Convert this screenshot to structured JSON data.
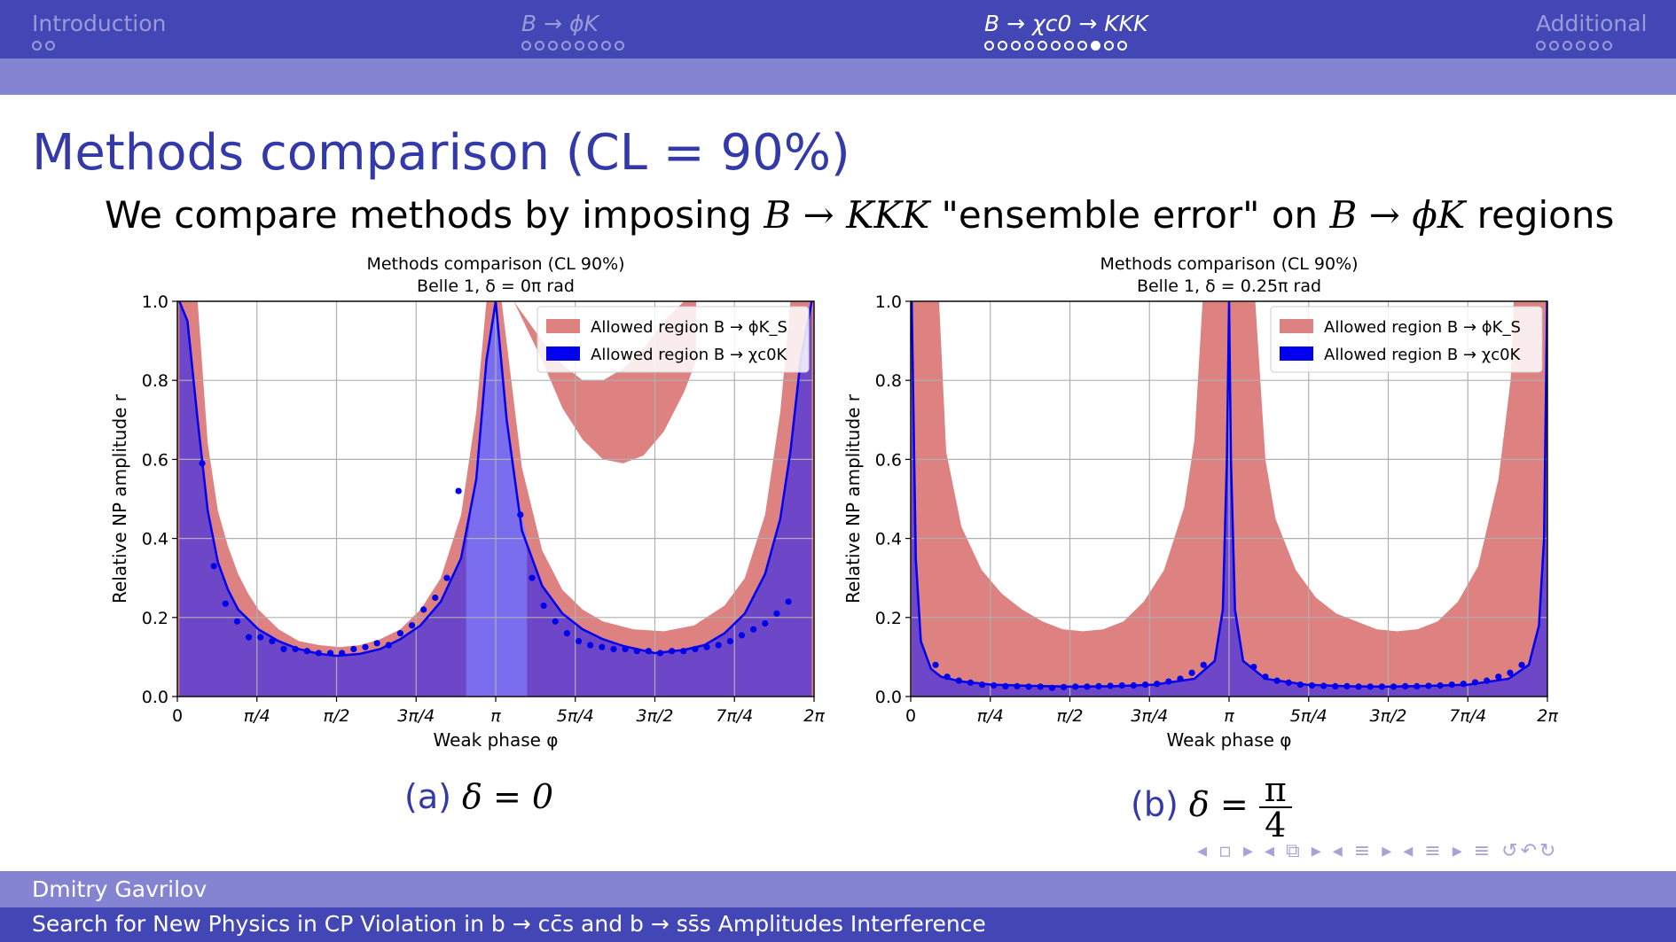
{
  "nav": {
    "sections": [
      {
        "label": "Introduction",
        "dots": 2,
        "active_dot": -1,
        "active": false
      },
      {
        "label": "B → ϕK",
        "dots": 8,
        "active_dot": -1,
        "active": false
      },
      {
        "label": "B → χc0 → KKK",
        "dots": 11,
        "active_dot": 8,
        "active": true
      },
      {
        "label": "Additional",
        "dots": 6,
        "active_dot": -1,
        "active": false
      }
    ]
  },
  "frame_title": "Methods comparison (CL = 90%)",
  "subtitle": {
    "pre": "We compare methods by imposing ",
    "m1": "B → KKK",
    "mid": " \"ensemble error\" on ",
    "m2": "B → ϕK",
    "post": " regions"
  },
  "chart_data": [
    {
      "type": "area",
      "title": "Methods comparison   (CL 90%)",
      "subtitle": "Belle 1,   δ = 0π rad",
      "xlabel": "Weak phase φ",
      "ylabel": "Relative NP amplitude r",
      "xlim": [
        0,
        6.2832
      ],
      "ylim": [
        0,
        1.0
      ],
      "xticks": [
        0,
        0.7854,
        1.5708,
        2.3562,
        3.1416,
        3.927,
        4.7124,
        5.4978,
        6.2832
      ],
      "xtick_labels": [
        "0",
        "π/4",
        "π/2",
        "3π/4",
        "π",
        "5π/4",
        "3π/2",
        "7π/4",
        "2π"
      ],
      "yticks": [
        0,
        0.2,
        0.4,
        0.6,
        0.8,
        1.0
      ],
      "ytick_labels": [
        "0.0",
        "0.2",
        "0.4",
        "0.6",
        "0.8",
        "1.0"
      ],
      "grid": true,
      "legend_position": "top-right",
      "legend": [
        "Allowed region B → ϕK_S",
        "Allowed region B → χc0K"
      ],
      "series": [
        {
          "name": "Allowed region B → ϕK_S",
          "color": "#dd8181",
          "upper_x": [
            0.2,
            0.3,
            0.4,
            0.5,
            0.6,
            0.7,
            0.8,
            1.0,
            1.2,
            1.4,
            1.6,
            1.8,
            2.0,
            2.2,
            2.4,
            2.6,
            2.8,
            2.95,
            3.05
          ],
          "upper_y": [
            1.0,
            0.64,
            0.47,
            0.38,
            0.31,
            0.26,
            0.22,
            0.17,
            0.14,
            0.13,
            0.125,
            0.13,
            0.145,
            0.17,
            0.22,
            0.3,
            0.46,
            0.72,
            1.0
          ],
          "upper2_x": [
            3.2,
            3.4,
            3.6,
            3.8,
            4.0,
            4.2,
            4.5,
            4.8,
            5.1,
            5.4,
            5.6,
            5.8,
            5.95,
            6.05
          ],
          "upper2_y": [
            1.0,
            0.58,
            0.37,
            0.27,
            0.22,
            0.19,
            0.17,
            0.165,
            0.18,
            0.23,
            0.3,
            0.46,
            0.72,
            1.0
          ],
          "outer_band_x": [
            3.32,
            3.6,
            3.8,
            4.0,
            4.2,
            4.4,
            4.6,
            4.8,
            5.0,
            5.12
          ],
          "outer_band_upper": [
            1.0,
            0.9,
            0.84,
            0.8,
            0.8,
            0.83,
            0.88,
            0.95,
            1.0,
            1.0
          ],
          "outer_band_lower": [
            1.0,
            0.85,
            0.73,
            0.65,
            0.6,
            0.59,
            0.61,
            0.67,
            0.77,
            0.85
          ]
        },
        {
          "name": "Allowed region B → χc0K",
          "color": "#0000ee",
          "curve_x": [
            0.02,
            0.1,
            0.2,
            0.3,
            0.4,
            0.5,
            0.6,
            0.8,
            1.0,
            1.2,
            1.4,
            1.5708,
            1.8,
            2.0,
            2.2,
            2.4,
            2.6,
            2.8,
            2.95,
            3.05,
            3.1416,
            3.25,
            3.4,
            3.6,
            3.8,
            4.0,
            4.2,
            4.4,
            4.7124,
            5.0,
            5.2,
            5.4,
            5.6,
            5.8,
            5.95,
            6.05,
            6.15,
            6.26
          ],
          "curve_y": [
            1.0,
            0.95,
            0.7,
            0.47,
            0.34,
            0.27,
            0.22,
            0.17,
            0.14,
            0.12,
            0.108,
            0.103,
            0.108,
            0.12,
            0.145,
            0.18,
            0.24,
            0.35,
            0.55,
            0.85,
            1.0,
            0.7,
            0.42,
            0.28,
            0.21,
            0.17,
            0.145,
            0.128,
            0.11,
            0.118,
            0.13,
            0.16,
            0.21,
            0.31,
            0.45,
            0.62,
            0.85,
            1.0
          ],
          "points_x": [
            0.245,
            0.36,
            0.475,
            0.59,
            0.705,
            0.82,
            0.935,
            1.05,
            1.165,
            1.28,
            1.395,
            1.51,
            1.625,
            1.74,
            1.855,
            1.97,
            2.085,
            2.2,
            2.315,
            2.43,
            2.545,
            2.66,
            2.775,
            3.385,
            3.5,
            3.615,
            3.73,
            3.845,
            3.96,
            4.075,
            4.19,
            4.305,
            4.42,
            4.535,
            4.65,
            4.765,
            4.88,
            4.995,
            5.11,
            5.225,
            5.34,
            5.455,
            5.57,
            5.685,
            5.8,
            5.915,
            6.03
          ],
          "points_y": [
            0.59,
            0.33,
            0.235,
            0.19,
            0.15,
            0.15,
            0.14,
            0.12,
            0.12,
            0.115,
            0.11,
            0.11,
            0.11,
            0.12,
            0.125,
            0.135,
            0.13,
            0.16,
            0.18,
            0.22,
            0.25,
            0.3,
            0.52,
            0.46,
            0.3,
            0.23,
            0.19,
            0.16,
            0.14,
            0.13,
            0.125,
            0.12,
            0.12,
            0.115,
            0.115,
            0.11,
            0.115,
            0.115,
            0.12,
            0.125,
            0.13,
            0.14,
            0.155,
            0.17,
            0.185,
            0.21,
            0.24
          ]
        }
      ]
    },
    {
      "type": "area",
      "title": "Methods comparison   (CL 90%)",
      "subtitle": "Belle 1,   δ = 0.25π rad",
      "xlabel": "Weak phase φ",
      "ylabel": "Relative NP amplitude r",
      "xlim": [
        0,
        6.2832
      ],
      "ylim": [
        0,
        1.0
      ],
      "xticks": [
        0,
        0.7854,
        1.5708,
        2.3562,
        3.1416,
        3.927,
        4.7124,
        5.4978,
        6.2832
      ],
      "xtick_labels": [
        "0",
        "π/4",
        "π/2",
        "3π/4",
        "π",
        "5π/4",
        "3π/2",
        "7π/4",
        "2π"
      ],
      "yticks": [
        0,
        0.2,
        0.4,
        0.6,
        0.8,
        1.0
      ],
      "ytick_labels": [
        "0.0",
        "0.2",
        "0.4",
        "0.6",
        "0.8",
        "1.0"
      ],
      "grid": true,
      "legend_position": "top-right",
      "legend": [
        "Allowed region B → ϕK_S",
        "Allowed region B → χc0K"
      ],
      "series": [
        {
          "name": "Allowed region B → ϕK_S",
          "color": "#dd8181",
          "upper_x": [
            0.28,
            0.35,
            0.5,
            0.7,
            0.9,
            1.1,
            1.3,
            1.5,
            1.7,
            1.9,
            2.1,
            2.3,
            2.5,
            2.7,
            2.8,
            2.88
          ],
          "upper_y": [
            1.0,
            0.62,
            0.43,
            0.32,
            0.26,
            0.22,
            0.19,
            0.17,
            0.165,
            0.17,
            0.19,
            0.24,
            0.32,
            0.48,
            0.65,
            1.0
          ],
          "upper2_x": [
            3.4,
            3.5,
            3.6,
            3.8,
            4.0,
            4.2,
            4.4,
            4.6,
            4.8,
            5.0,
            5.2,
            5.4,
            5.6,
            5.8,
            5.92,
            5.95
          ],
          "upper2_y": [
            1.0,
            0.6,
            0.45,
            0.32,
            0.25,
            0.21,
            0.19,
            0.17,
            0.165,
            0.17,
            0.19,
            0.24,
            0.33,
            0.55,
            0.8,
            1.0
          ]
        },
        {
          "name": "Allowed region B → χc0K",
          "color": "#0000ee",
          "curve_x": [
            0.01,
            0.05,
            0.1,
            0.2,
            0.3,
            0.5,
            0.8,
            1.2,
            1.6,
            2.0,
            2.4,
            2.8,
            3.0,
            3.08,
            3.12,
            3.1416,
            3.16,
            3.2,
            3.28,
            3.5,
            3.9,
            4.3,
            4.7,
            5.1,
            5.5,
            5.9,
            6.1,
            6.2,
            6.25,
            6.28
          ],
          "curve_y": [
            1.0,
            0.35,
            0.14,
            0.07,
            0.05,
            0.038,
            0.03,
            0.027,
            0.025,
            0.026,
            0.03,
            0.045,
            0.09,
            0.22,
            0.6,
            1.0,
            0.6,
            0.22,
            0.09,
            0.045,
            0.03,
            0.026,
            0.025,
            0.027,
            0.03,
            0.045,
            0.08,
            0.18,
            0.4,
            1.0
          ],
          "points_x": [
            0.245,
            0.36,
            0.475,
            0.59,
            0.705,
            0.82,
            0.935,
            1.05,
            1.165,
            1.28,
            1.395,
            1.51,
            1.625,
            1.74,
            1.855,
            1.97,
            2.085,
            2.2,
            2.315,
            2.43,
            2.545,
            2.66,
            2.775,
            2.89,
            3.385,
            3.5,
            3.615,
            3.73,
            3.845,
            3.96,
            4.075,
            4.19,
            4.305,
            4.42,
            4.535,
            4.65,
            4.765,
            4.88,
            4.995,
            5.11,
            5.225,
            5.34,
            5.455,
            5.57,
            5.685,
            5.8,
            5.915,
            6.03
          ],
          "points_y": [
            0.08,
            0.05,
            0.04,
            0.035,
            0.03,
            0.028,
            0.026,
            0.026,
            0.025,
            0.025,
            0.022,
            0.024,
            0.025,
            0.025,
            0.026,
            0.027,
            0.028,
            0.028,
            0.03,
            0.032,
            0.038,
            0.045,
            0.06,
            0.08,
            0.075,
            0.05,
            0.04,
            0.035,
            0.03,
            0.028,
            0.027,
            0.026,
            0.026,
            0.025,
            0.025,
            0.025,
            0.025,
            0.026,
            0.026,
            0.027,
            0.028,
            0.03,
            0.032,
            0.036,
            0.04,
            0.05,
            0.06,
            0.08
          ]
        }
      ]
    }
  ],
  "captions": {
    "a": {
      "tag": "(a)",
      "math": "δ = 0"
    },
    "b": {
      "tag": "(b)",
      "math": "δ = ",
      "num": "π",
      "den": "4"
    }
  },
  "beamer_nav_symbols": "◂ ▫ ▸ ◂ ⧉ ▸ ◂ ≡ ▸ ◂ ≡ ▸ ≡ ↺↶↻",
  "footer": {
    "author": "Dmitry Gavrilov",
    "title": "Search for New Physics in CP Violation in b → cc̄s and b → ss̄s Amplitudes Interference"
  },
  "colors": {
    "bar_dark": "#4347b6",
    "bar_light": "#8584d2",
    "title_blue": "#3339a8",
    "fill_purple": "#6e46c8",
    "band_red": "#dd8181",
    "curve_blue": "#0000ee"
  }
}
